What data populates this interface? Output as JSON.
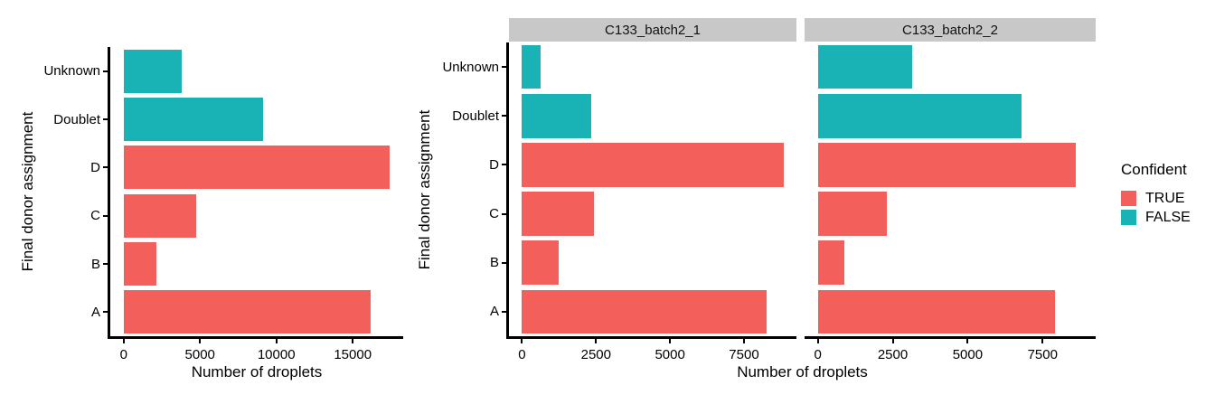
{
  "chart_data": {
    "type": "bar",
    "orientation": "horizontal",
    "xlabel": "Number of droplets",
    "ylabel": "Final donor assignment",
    "grid": false,
    "categories_top_to_bottom": [
      "Unknown",
      "Doublet",
      "D",
      "C",
      "B",
      "A"
    ],
    "category_confident": {
      "Unknown": "FALSE",
      "Doublet": "FALSE",
      "D": "TRUE",
      "C": "TRUE",
      "B": "TRUE",
      "A": "TRUE"
    },
    "bar_colors": {
      "TRUE": "#F3605B",
      "FALSE": "#19B3B6"
    },
    "legend": {
      "title": "Confident",
      "position": "right",
      "items": [
        {
          "label": "TRUE",
          "color": "#F3605B"
        },
        {
          "label": "FALSE",
          "color": "#19B3B6"
        }
      ]
    },
    "panels": [
      {
        "title": "",
        "values": [
          3780,
          9140,
          17430,
          4740,
          2150,
          16150
        ],
        "axis": {
          "min": -872,
          "max": 18302,
          "label_ticks": [
            0,
            5000,
            10000,
            15000
          ]
        }
      },
      {
        "title": "C133_batch2_1",
        "values": [
          620,
          2340,
          8830,
          2440,
          1250,
          8250
        ],
        "axis": {
          "min": -442,
          "max": 9272,
          "label_ticks": [
            0,
            2500,
            5000,
            7500
          ]
        }
      },
      {
        "title": "C133_batch2_2",
        "values": [
          3160,
          6800,
          8600,
          2300,
          900,
          7900
        ],
        "axis": {
          "min": -442,
          "max": 9272,
          "label_ticks": [
            0,
            2500,
            5000,
            7500
          ]
        }
      }
    ],
    "style_colors": {
      "strip_background": "#C8C8C8",
      "axis": "#000000",
      "text": "#000000"
    }
  }
}
